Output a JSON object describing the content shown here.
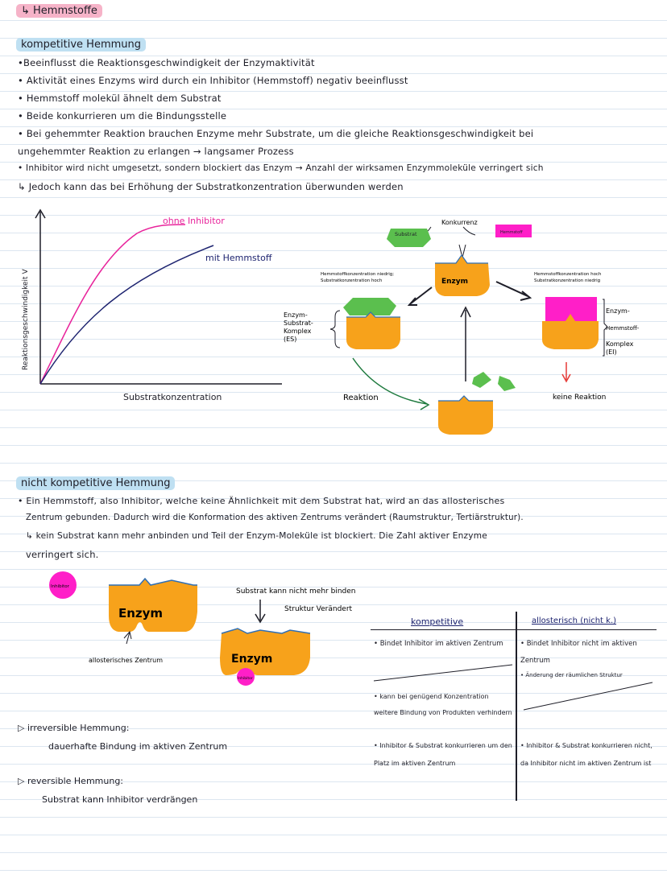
{
  "page_title": "↳ Hemmstoffe",
  "competitive": {
    "heading": "kompetitive Hemmung",
    "bullets": [
      "•Beeinflusst die Reaktionsgeschwindigkeit der Enzymaktivität",
      "• Aktivität eines Enzyms wird durch ein Inhibitor (Hemmstoff) negativ beeinflusst",
      "• Hemmstoff molekül ähnelt dem Substrat",
      "• Beide konkurrieren um die Bindungsstelle",
      "• Bei gehemmter Reaktion brauchen Enzyme mehr Substrate, um die gleiche Reaktionsgeschwindigkeit bei",
      "ungehemmter Reaktion zu erlangen → langsamer Prozess",
      "• Inhibitor wird nicht umgesetzt, sondern blockiert das Enzym → Anzahl der wirksamen Enzymmoleküle verringert sich",
      "↳ Jedoch kann das bei Erhöhung der Substratkonzentration überwunden werden"
    ]
  },
  "graph": {
    "ylabel": "Reaktionsgeschwindigkeit V",
    "xlabel": "Substratkonzentration",
    "series": [
      {
        "name": "ohne Inhibitor",
        "color": "#e8239b"
      },
      {
        "name": "mit Hemmstoff",
        "color": "#1e2470"
      }
    ]
  },
  "cycle_diagram": {
    "konkurrenz": "Konkurrenz",
    "substrat": "Substrat",
    "hemmstoff": "Hemmstoff",
    "enzym": "Enzym",
    "left_note_1": "Hemmstoffkonzentration niedrig;",
    "left_note_2": "Substratkonzentration hoch",
    "right_note_1": "Hemmstoffkonzentration hoch",
    "right_note_2": "Substratkonzentration niedrig",
    "es_label": [
      "Enzym-",
      "Substrat-",
      "Komplex",
      "(ES)"
    ],
    "ei_label": [
      "Enzym-",
      "Hemmstoff-",
      "Komplex",
      "(EI)"
    ],
    "reaktion": "Reaktion",
    "keine_reaktion": "keine Reaktion"
  },
  "noncompetitive": {
    "heading": "nicht kompetitive Hemmung",
    "lines": [
      "• Ein Hemmstoff, also Inhibitor, welche keine Ähnlichkeit mit dem Substrat hat, wird an das allosterisches",
      "Zentrum gebunden. Dadurch wird die Konformation des aktiven Zentrums verändert (Raumstruktur, Tertiärstruktur).",
      "↳ kein Substrat kann mehr anbinden und Teil der Enzym-Moleküle ist blockiert. Die Zahl aktiver Enzyme",
      "verringert sich."
    ]
  },
  "allosteric_diagram": {
    "inhibitor": "Inhibitor",
    "enzym": "Enzym",
    "allosterisch": "allosterisches Zentrum",
    "substrat_nicht": "Substrat kann nicht mehr binden",
    "struktur": "Struktur Verändert"
  },
  "reversibility": {
    "irreversible_heading": "irreversible Hemmung:",
    "irreversible_text": "dauerhafte Bindung im aktiven Zentrum",
    "reversible_heading": "reversible Hemmung:",
    "reversible_text": "Substrat kann Inhibitor verdrängen"
  },
  "comparison_table": {
    "col1_header": "kompetitive",
    "col2_header": "allosterisch (nicht k.)",
    "row1_col1": "• Bindet Inhibitor im aktiven Zentrum",
    "row1_col2": "• Bindet Inhibitor nicht im aktiven Zentrum",
    "row1b_col2": "• Änderung der räumlichen Struktur",
    "row2_col1": "• kann bei genügend Konzentration weitere Bindung von Produkten verhindern",
    "row3_col1": "• Inhibitor & Substrat konkurrieren um den Platz im aktiven Zentrum",
    "row3_col2": "• Inhibitor & Substrat konkurrieren nicht, da Inhibitor nicht im aktiven Zentrum ist"
  },
  "colors": {
    "pink": "#e8239b",
    "navy": "#1e2470",
    "orange": "#f7a21b",
    "green": "#5bbf4e",
    "magenta": "#ff1fc8",
    "blue_line": "#2f6fb5"
  }
}
